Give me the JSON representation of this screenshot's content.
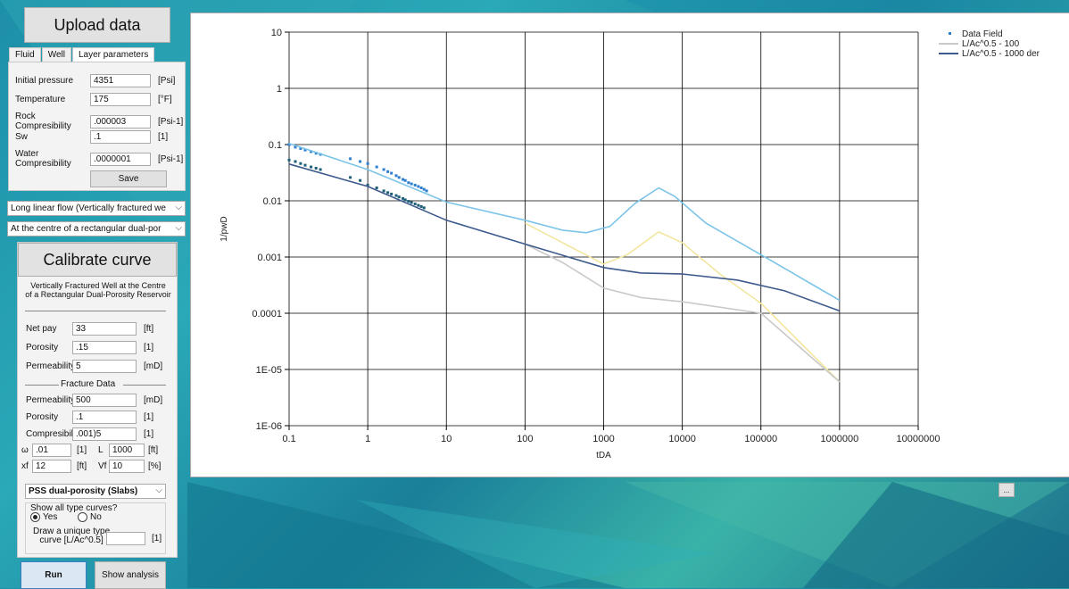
{
  "upload": {
    "button": "Upload data"
  },
  "tabs": [
    "Fluid",
    "Well",
    "Layer parameters"
  ],
  "layer": {
    "fields": [
      {
        "label": "Initial pressure",
        "value": "4351",
        "unit": "[Psi]"
      },
      {
        "label": "Temperature",
        "value": "175",
        "unit": "[°F]"
      },
      {
        "label": "Rock Compresibility",
        "value": ".000003",
        "unit": "[Psi-1]"
      },
      {
        "label": "Sw",
        "value": ".1",
        "unit": "[1]"
      },
      {
        "label": "Water Compresibility",
        "value": ".0000001",
        "unit": "[Psi-1]"
      }
    ],
    "save": "Save"
  },
  "flow_select": "Long linear flow (Vertically fractured we",
  "geom_select": "At the centre of a rectangular dual-por",
  "calibrate": {
    "button": "Calibrate curve",
    "title_line1": "Vertically Fractured Well at the Centre",
    "title_line2": "of a Rectangular Dual-Porosity Reservoir",
    "fields": [
      {
        "label": "Net pay",
        "value": "33",
        "unit": "[ft]"
      },
      {
        "label": "Porosity",
        "value": ".15",
        "unit": "[1]"
      },
      {
        "label": "Permeability",
        "value": "5",
        "unit": "[mD]"
      }
    ],
    "fracture_header": "Fracture Data",
    "fracture_fields": [
      {
        "label": "Permeability",
        "value": "500",
        "unit": "[mD]"
      },
      {
        "label": "Porosity",
        "value": ".1",
        "unit": "[1]"
      },
      {
        "label": "Compresibility",
        "value": ".001)5",
        "unit": "[1]"
      }
    ],
    "omega_label": "ω",
    "omega_value": ".01",
    "omega_unit": "[1]",
    "L_label": "L",
    "L_value": "1000",
    "L_unit": "[ft]",
    "xf_label": "xf",
    "xf_value": "12",
    "xf_unit": "[ft]",
    "vf_label": "Vf",
    "vf_value": "10",
    "vf_unit": "[%]",
    "model_select": "PSS dual-porosity (Slabs)",
    "show_all_label": "Show all type curves?",
    "yes": "Yes",
    "no": "No",
    "draw_label_1": "Draw a unique type",
    "draw_label_2": "curve [L/Ac^0.5]",
    "draw_unit": "[1]"
  },
  "run": "Run",
  "show_analysis": "Show analysis",
  "ellipsis": "...",
  "chart_data": {
    "type": "scatter",
    "xlabel": "tDA",
    "ylabel": "1/pwD",
    "x_scale": "log",
    "y_scale": "log",
    "xlim": [
      0.1,
      10000000
    ],
    "ylim": [
      1e-06,
      10
    ],
    "x_ticks": [
      "0.1",
      "1",
      "10",
      "100",
      "1000",
      "10000",
      "100000",
      "1000000",
      "10000000"
    ],
    "y_ticks": [
      "10",
      "1",
      "0.1",
      "0.01",
      "0.001",
      "0.0001",
      "1E-05",
      "1E-06"
    ],
    "grid": true,
    "legend": "top-right",
    "series": [
      {
        "name": "Data Field",
        "kind": "points",
        "color": "#2f7fd1",
        "points": [
          [
            0.1,
            0.1
          ],
          [
            0.12,
            0.09
          ],
          [
            0.14,
            0.085
          ],
          [
            0.16,
            0.08
          ],
          [
            0.19,
            0.075
          ],
          [
            0.22,
            0.07
          ],
          [
            0.25,
            0.067
          ],
          [
            0.6,
            0.056
          ],
          [
            0.8,
            0.05
          ],
          [
            1.0,
            0.046
          ],
          [
            1.3,
            0.04
          ],
          [
            1.6,
            0.036
          ],
          [
            1.8,
            0.033
          ],
          [
            2.0,
            0.031
          ],
          [
            2.3,
            0.028
          ],
          [
            2.5,
            0.026
          ],
          [
            2.8,
            0.024
          ],
          [
            3.0,
            0.023
          ],
          [
            3.3,
            0.021
          ],
          [
            3.6,
            0.02
          ],
          [
            4.0,
            0.019
          ],
          [
            4.4,
            0.018
          ],
          [
            4.8,
            0.017
          ],
          [
            5.2,
            0.016
          ],
          [
            5.6,
            0.015
          ]
        ]
      },
      {
        "name": "",
        "kind": "points",
        "color": "#1e5f7a",
        "points": [
          [
            0.1,
            0.053
          ],
          [
            0.12,
            0.05
          ],
          [
            0.14,
            0.046
          ],
          [
            0.16,
            0.043
          ],
          [
            0.19,
            0.04
          ],
          [
            0.22,
            0.038
          ],
          [
            0.25,
            0.036
          ],
          [
            0.6,
            0.026
          ],
          [
            0.8,
            0.023
          ],
          [
            1.0,
            0.019
          ],
          [
            1.3,
            0.017
          ],
          [
            1.6,
            0.015
          ],
          [
            1.8,
            0.014
          ],
          [
            2.0,
            0.0132
          ],
          [
            2.3,
            0.0124
          ],
          [
            2.5,
            0.0117
          ],
          [
            2.8,
            0.011
          ],
          [
            3.0,
            0.0104
          ],
          [
            3.3,
            0.0098
          ],
          [
            3.6,
            0.0093
          ],
          [
            4.0,
            0.0088
          ],
          [
            4.4,
            0.0083
          ],
          [
            4.8,
            0.0079
          ],
          [
            5.2,
            0.0075
          ]
        ]
      },
      {
        "name": "",
        "kind": "line",
        "color": "#7cc4e8",
        "points": [
          [
            0.1,
            0.105
          ],
          [
            1,
            0.036
          ],
          [
            10,
            0.0095
          ],
          [
            100,
            0.0045
          ],
          [
            300,
            0.003
          ],
          [
            600,
            0.0027
          ],
          [
            1200,
            0.0035
          ],
          [
            2500,
            0.009
          ],
          [
            5000,
            0.017
          ],
          [
            8000,
            0.012
          ],
          [
            20000,
            0.004
          ],
          [
            100000,
            0.0011
          ],
          [
            1000000,
            0.00017
          ]
        ]
      },
      {
        "name": "",
        "kind": "line",
        "color": "#f2e6a0",
        "points": [
          [
            100,
            0.004
          ],
          [
            300,
            0.0018
          ],
          [
            1000,
            0.00075
          ],
          [
            2000,
            0.0011
          ],
          [
            5000,
            0.0028
          ],
          [
            10000,
            0.0018
          ],
          [
            30000,
            0.0005
          ],
          [
            100000,
            0.00015
          ],
          [
            1000000,
            6e-06
          ]
        ]
      },
      {
        "name": "L/Ac^0.5 - 100",
        "kind": "line",
        "color": "#c9c9c9",
        "points": [
          [
            100,
            0.0017
          ],
          [
            300,
            0.0008
          ],
          [
            1000,
            0.00028
          ],
          [
            3000,
            0.00019
          ],
          [
            10000,
            0.00016
          ],
          [
            100000,
            0.0001
          ],
          [
            1000000,
            6e-06
          ]
        ]
      },
      {
        "name": "L/Ac^0.5 - 1000 der",
        "kind": "line",
        "color": "#3c5a8c",
        "points": [
          [
            0.1,
            0.045
          ],
          [
            1,
            0.018
          ],
          [
            10,
            0.0045
          ],
          [
            100,
            0.0017
          ],
          [
            1000,
            0.00065
          ],
          [
            3000,
            0.00052
          ],
          [
            10000,
            0.0005
          ],
          [
            50000,
            0.00039
          ],
          [
            200000,
            0.00025
          ],
          [
            1000000,
            0.00011
          ]
        ]
      }
    ]
  }
}
